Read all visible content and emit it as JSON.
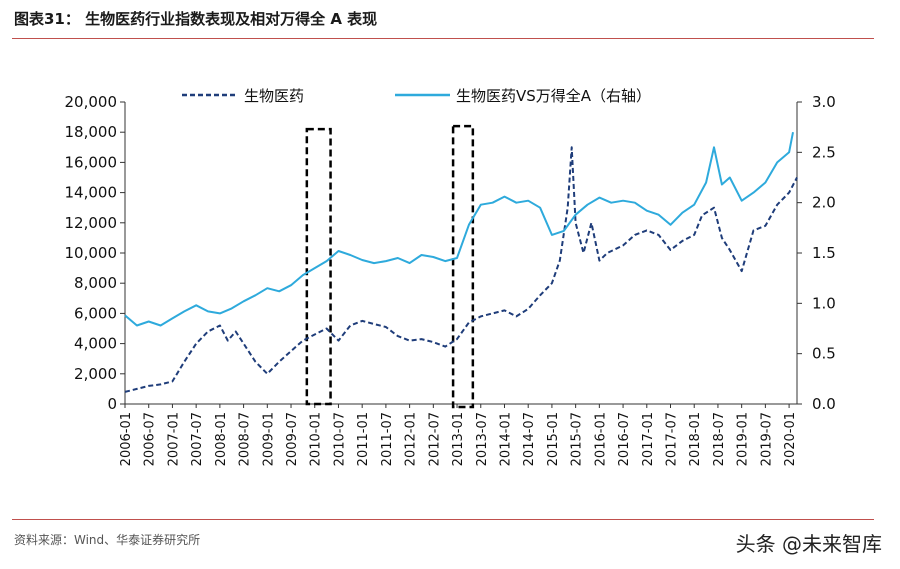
{
  "figure": {
    "title": "图表31：  生物医药行业指数表现及相对万得全 A 表现",
    "source": "资料来源：Wind、华泰证券研究所",
    "watermark": "头条 @未来智库"
  },
  "colors": {
    "series_index": "#1f3d7a",
    "series_relative": "#2eaadc",
    "rule": "#c0504d",
    "highlight_box": "#000000"
  },
  "chart_data": {
    "type": "line",
    "legend_placement": "top",
    "grid": false,
    "x_ticks": [
      "2006-01",
      "2006-07",
      "2007-01",
      "2007-07",
      "2008-01",
      "2008-07",
      "2009-01",
      "2009-07",
      "2010-01",
      "2010-07",
      "2011-01",
      "2011-07",
      "2012-01",
      "2012-07",
      "2013-01",
      "2013-07",
      "2014-01",
      "2014-07",
      "2015-01",
      "2015-07",
      "2016-01",
      "2016-07",
      "2017-01",
      "2017-07",
      "2018-01",
      "2018-07",
      "2019-01",
      "2019-07",
      "2020-01"
    ],
    "y_left": {
      "range": [
        0,
        20000
      ],
      "ticks": [
        "0",
        "2,000",
        "4,000",
        "6,000",
        "8,000",
        "10,000",
        "12,000",
        "14,000",
        "16,000",
        "18,000",
        "20,000"
      ]
    },
    "y_right": {
      "range": [
        0,
        3
      ],
      "ticks": [
        "0.0",
        "0.5",
        "1.0",
        "1.5",
        "2.0",
        "2.5",
        "3.0"
      ]
    },
    "series": [
      {
        "name": "生物医药",
        "axis": "left",
        "style": "dashed",
        "points": [
          [
            "2006-01",
            800
          ],
          [
            "2006-04",
            1000
          ],
          [
            "2006-07",
            1200
          ],
          [
            "2006-10",
            1300
          ],
          [
            "2007-01",
            1500
          ],
          [
            "2007-04",
            2800
          ],
          [
            "2007-07",
            4000
          ],
          [
            "2007-10",
            4800
          ],
          [
            "2008-01",
            5200
          ],
          [
            "2008-03",
            4200
          ],
          [
            "2008-05",
            4800
          ],
          [
            "2008-07",
            4000
          ],
          [
            "2008-10",
            2800
          ],
          [
            "2009-01",
            2000
          ],
          [
            "2009-04",
            2800
          ],
          [
            "2009-07",
            3500
          ],
          [
            "2009-10",
            4200
          ],
          [
            "2010-01",
            4600
          ],
          [
            "2010-04",
            5000
          ],
          [
            "2010-07",
            4200
          ],
          [
            "2010-10",
            5200
          ],
          [
            "2011-01",
            5500
          ],
          [
            "2011-04",
            5300
          ],
          [
            "2011-07",
            5100
          ],
          [
            "2011-10",
            4500
          ],
          [
            "2012-01",
            4200
          ],
          [
            "2012-04",
            4300
          ],
          [
            "2012-07",
            4100
          ],
          [
            "2012-10",
            3800
          ],
          [
            "2013-01",
            4300
          ],
          [
            "2013-04",
            5400
          ],
          [
            "2013-07",
            5800
          ],
          [
            "2013-10",
            6000
          ],
          [
            "2014-01",
            6200
          ],
          [
            "2014-04",
            5800
          ],
          [
            "2014-07",
            6300
          ],
          [
            "2014-10",
            7200
          ],
          [
            "2015-01",
            8000
          ],
          [
            "2015-03",
            9500
          ],
          [
            "2015-05",
            13000
          ],
          [
            "2015-06",
            17000
          ],
          [
            "2015-07",
            12000
          ],
          [
            "2015-09",
            10000
          ],
          [
            "2015-11",
            12000
          ],
          [
            "2016-01",
            9500
          ],
          [
            "2016-03",
            10000
          ],
          [
            "2016-07",
            10500
          ],
          [
            "2016-10",
            11200
          ],
          [
            "2017-01",
            11500
          ],
          [
            "2017-04",
            11200
          ],
          [
            "2017-07",
            10200
          ],
          [
            "2017-10",
            10800
          ],
          [
            "2018-01",
            11200
          ],
          [
            "2018-03",
            12500
          ],
          [
            "2018-06",
            13000
          ],
          [
            "2018-08",
            11000
          ],
          [
            "2018-10",
            10200
          ],
          [
            "2019-01",
            8800
          ],
          [
            "2019-04",
            11500
          ],
          [
            "2019-07",
            11800
          ],
          [
            "2019-10",
            13200
          ],
          [
            "2020-01",
            14000
          ],
          [
            "2020-03",
            15000
          ]
        ]
      },
      {
        "name": "生物医药VS万得全A（右轴）",
        "axis": "right",
        "style": "solid",
        "points": [
          [
            "2006-01",
            0.88
          ],
          [
            "2006-04",
            0.78
          ],
          [
            "2006-07",
            0.82
          ],
          [
            "2006-10",
            0.78
          ],
          [
            "2007-01",
            0.85
          ],
          [
            "2007-04",
            0.92
          ],
          [
            "2007-07",
            0.98
          ],
          [
            "2007-10",
            0.92
          ],
          [
            "2008-01",
            0.9
          ],
          [
            "2008-04",
            0.95
          ],
          [
            "2008-07",
            1.02
          ],
          [
            "2008-10",
            1.08
          ],
          [
            "2009-01",
            1.15
          ],
          [
            "2009-04",
            1.12
          ],
          [
            "2009-07",
            1.18
          ],
          [
            "2009-10",
            1.28
          ],
          [
            "2010-01",
            1.35
          ],
          [
            "2010-04",
            1.42
          ],
          [
            "2010-07",
            1.52
          ],
          [
            "2010-10",
            1.48
          ],
          [
            "2011-01",
            1.43
          ],
          [
            "2011-04",
            1.4
          ],
          [
            "2011-07",
            1.42
          ],
          [
            "2011-10",
            1.45
          ],
          [
            "2012-01",
            1.4
          ],
          [
            "2012-04",
            1.48
          ],
          [
            "2012-07",
            1.46
          ],
          [
            "2012-10",
            1.42
          ],
          [
            "2013-01",
            1.45
          ],
          [
            "2013-04",
            1.78
          ],
          [
            "2013-07",
            1.98
          ],
          [
            "2013-10",
            2.0
          ],
          [
            "2014-01",
            2.06
          ],
          [
            "2014-04",
            2.0
          ],
          [
            "2014-07",
            2.02
          ],
          [
            "2014-10",
            1.95
          ],
          [
            "2015-01",
            1.68
          ],
          [
            "2015-04",
            1.72
          ],
          [
            "2015-07",
            1.88
          ],
          [
            "2015-10",
            1.98
          ],
          [
            "2016-01",
            2.05
          ],
          [
            "2016-04",
            2.0
          ],
          [
            "2016-07",
            2.02
          ],
          [
            "2016-10",
            2.0
          ],
          [
            "2017-01",
            1.92
          ],
          [
            "2017-04",
            1.88
          ],
          [
            "2017-07",
            1.78
          ],
          [
            "2017-10",
            1.9
          ],
          [
            "2018-01",
            1.98
          ],
          [
            "2018-04",
            2.2
          ],
          [
            "2018-06",
            2.55
          ],
          [
            "2018-08",
            2.18
          ],
          [
            "2018-10",
            2.25
          ],
          [
            "2019-01",
            2.02
          ],
          [
            "2019-04",
            2.1
          ],
          [
            "2019-07",
            2.2
          ],
          [
            "2019-10",
            2.4
          ],
          [
            "2020-01",
            2.5
          ],
          [
            "2020-02",
            2.7
          ]
        ]
      }
    ],
    "highlight_boxes": [
      {
        "from": "2009-11",
        "to": "2010-05",
        "y_top": 18200,
        "y_bottom": 0
      },
      {
        "from": "2012-12",
        "to": "2013-05",
        "y_top": 18400,
        "y_bottom": -200
      }
    ]
  }
}
